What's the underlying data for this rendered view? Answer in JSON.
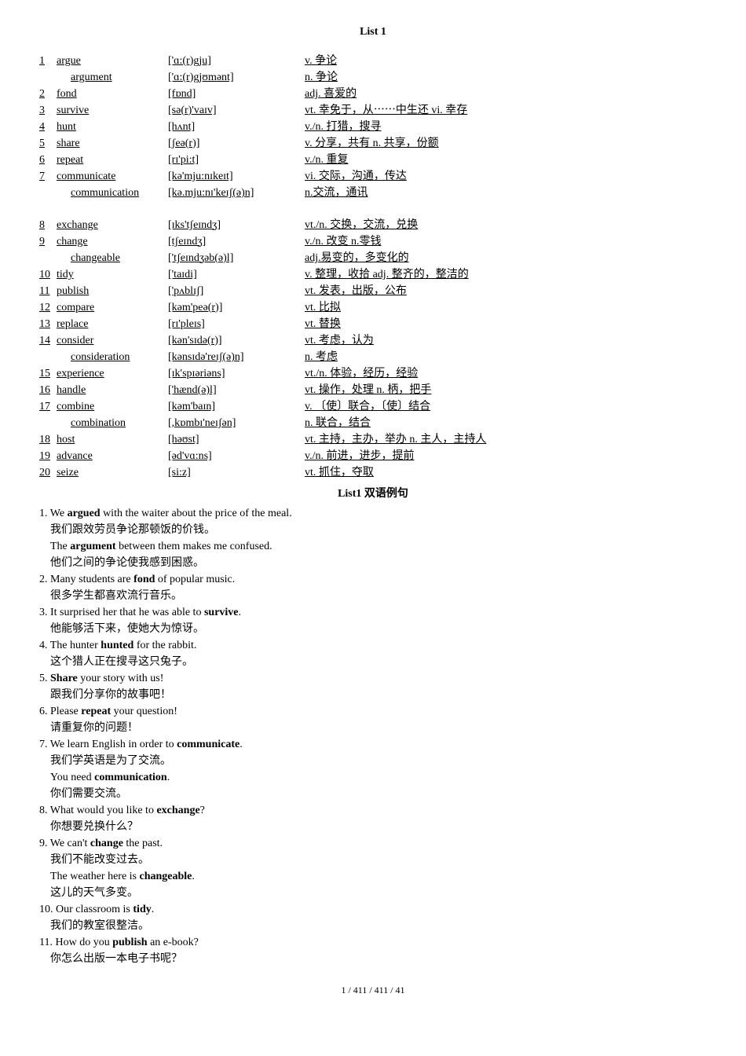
{
  "title": "List 1",
  "vocab": [
    {
      "num": "1",
      "word": "argue",
      "ipa": "['ɑ:(r)gju]",
      "def": "v. 争论"
    },
    {
      "num": "",
      "word": "argument",
      "ipa": "['ɑ:(r)gjʊmənt]",
      "def": "n. 争论",
      "sub": true
    },
    {
      "num": "2",
      "word": "fond",
      "ipa": "[fɒnd]",
      "def": "adj. 喜爱的"
    },
    {
      "num": "3",
      "word": "survive",
      "ipa": "[sə(r)'vaɪv]",
      "def": "vt. 幸免于，从⋯⋯中生还  vi. 幸存"
    },
    {
      "num": "4",
      "word": "hunt",
      "ipa": "[hʌnt]",
      "def": "v./n. 打猎，搜寻"
    },
    {
      "num": "5",
      "word": "share",
      "ipa": "[ʃeə(r)]",
      "def": "v. 分享，共有  n. 共享，份额"
    },
    {
      "num": "6",
      "word": "repeat",
      "ipa": "[rɪ'pi:t]",
      "def": "v./n. 重复"
    },
    {
      "num": "7",
      "word": "communicate",
      "ipa": "[kə'mju:nɪkeɪt]",
      "def": "vi. 交际，沟通，传达"
    },
    {
      "num": "",
      "word": "communication",
      "ipa": "[kə.mju:nɪ'keɪʃ(ə)n]",
      "def": "n.交流，通讯",
      "sub": true
    },
    {
      "spacer": true
    },
    {
      "num": "8",
      "word": "exchange",
      "ipa": "[ɪks'tʃeɪndʒ]",
      "def": "vt./n. 交换，交流，兑换"
    },
    {
      "num": "9",
      "word": "change",
      "ipa": "[tʃeɪndʒ]",
      "def": "v./n. 改变  n.零钱"
    },
    {
      "num": "",
      "word": "changeable",
      "ipa": "['tʃeɪndʒəb(ə)l]",
      "def": "adj.易变的，多变化的",
      "sub": true
    },
    {
      "num": "10",
      "word": "tidy",
      "ipa": "['taɪdi]",
      "def": "v. 整理，收拾  adj. 整齐的，整洁的"
    },
    {
      "num": "11",
      "word": "publish",
      "ipa": "['pʌblɪʃ]",
      "def": "vt. 发表，出版，公布"
    },
    {
      "num": "12",
      "word": "compare",
      "ipa": "[kəm'peə(r)]",
      "def": "vt. 比拟"
    },
    {
      "num": "13",
      "word": "replace",
      "ipa": "[rɪ'pleɪs]",
      "def": "vt. 替换"
    },
    {
      "num": "14",
      "word": "consider",
      "ipa": "[kən'sɪdə(r)]",
      "def": "vt. 考虑，认为"
    },
    {
      "num": "",
      "word": "consideration",
      "ipa": "[kənsɪdə'reɪʃ(ə)n]",
      "def": "n. 考虑",
      "sub": true
    },
    {
      "num": "15",
      "word": "experience",
      "ipa": "[ɪk'spɪəriəns]",
      "def": "vt./n. 体验，经历，经验"
    },
    {
      "num": "16",
      "word": "handle",
      "ipa": "['hænd(ə)l]",
      "def": "vt. 操作，处理  n. 柄，把手"
    },
    {
      "num": "17",
      "word": "combine",
      "ipa": "[kəm'baɪn]",
      "def": "v. 〔使〕联合，〔使〕结合"
    },
    {
      "num": "",
      "word": "combination",
      "ipa": "[,kɒmbɪ'neɪʃən]",
      "def": "n. 联合，结合",
      "sub": true
    },
    {
      "num": "18",
      "word": "host",
      "ipa": "[həʊst]",
      "def": "vt. 主持，主办，举办  n. 主人，主持人"
    },
    {
      "num": "19",
      "word": "advance",
      "ipa": "[əd'vɑ:ns]",
      "def": "v./n. 前进，进步，提前"
    },
    {
      "num": "20",
      "word": "seize",
      "ipa": "[si:z]",
      "def": "vt. 抓住，夺取"
    }
  ],
  "examples_title": "List1 双语例句",
  "examples": [
    {
      "num": "1.",
      "en": "We <b>argued</b> with the waiter about the price of the meal.",
      "cn": "我们跟效劳员争论那顿饭的价钱。",
      "sub_en": "The <b>argument</b> between them makes me confused.",
      "sub_cn": "他们之间的争论使我感到困惑。"
    },
    {
      "num": "2.",
      "en": "Many students are <b>fond</b> of popular music.",
      "cn": "很多学生都喜欢流行音乐。"
    },
    {
      "num": "3.",
      "en": "It surprised her that he was able to <b>survive</b>.",
      "cn": "他能够活下来，使她大为惊讶。"
    },
    {
      "num": "4.",
      "en": "The hunter <b>hunted</b> for the rabbit.",
      "cn": "这个猎人正在搜寻这只兔子。"
    },
    {
      "num": "5.",
      "en": "<b>Share</b> your story with us!",
      "cn": "跟我们分享你的故事吧！"
    },
    {
      "num": "6.",
      "en": "Please <b>repeat</b> your question!",
      "cn": "请重复你的问题！"
    },
    {
      "num": "7.",
      "en": "We learn English in order to <b>communicate</b>.",
      "cn": "我们学英语是为了交流。",
      "sub_en": "You need <b>communication</b>.",
      "sub_cn": "你们需要交流。"
    },
    {
      "num": "8.",
      "en": "What would you like to <b>exchange</b>?",
      "cn": "你想要兑换什么？"
    },
    {
      "num": "9.",
      "en": "We can't <b>change</b> the past.",
      "cn": "我们不能改变过去。",
      "sub_en": "The weather here is <b>changeable</b>.",
      "sub_cn": "这儿的天气多变。"
    },
    {
      "num": "10.",
      "en": "Our classroom is <b>tidy</b>.",
      "cn": "我们的教室很整洁。"
    },
    {
      "num": "11.",
      "en": "How do you <b>publish</b> an e-book?",
      "cn": "你怎么出版一本电子书呢？"
    }
  ],
  "footer": "1 / 411 / 411 / 41"
}
